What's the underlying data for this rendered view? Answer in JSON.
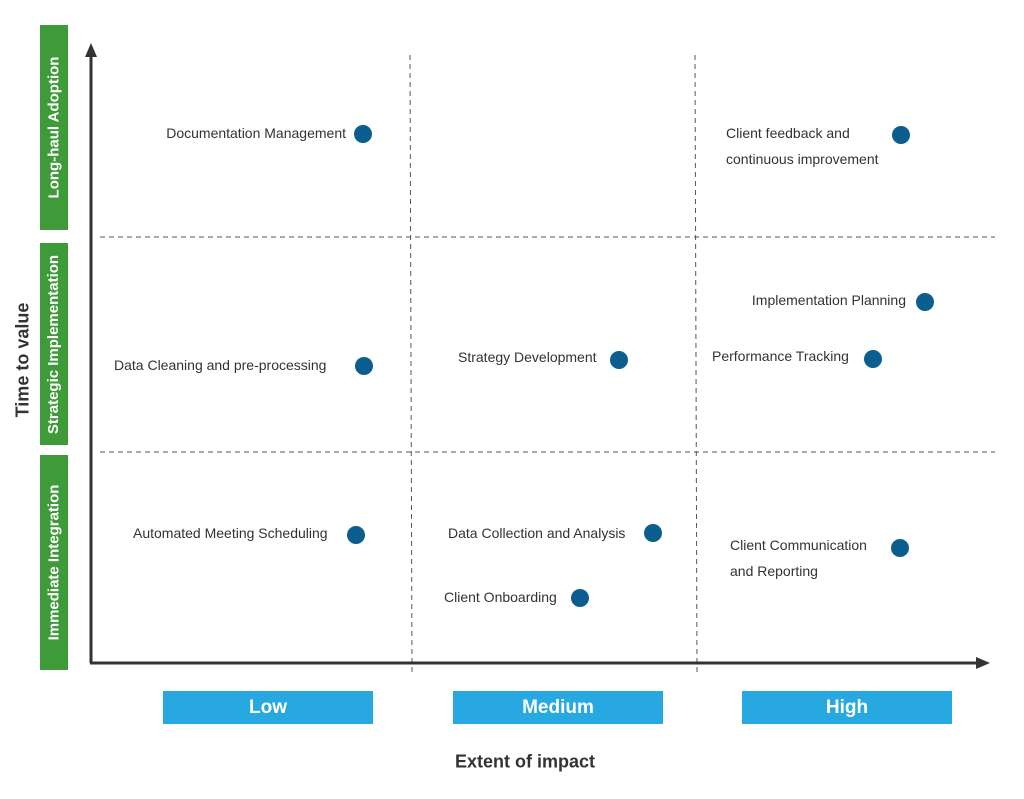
{
  "y_axis": {
    "title": "Time to value",
    "bands": [
      "Long-haul  Adoption",
      "Strategic Implementation",
      "Immediate Integration"
    ]
  },
  "x_axis": {
    "title": "Extent of impact",
    "categories": [
      "Low",
      "Medium",
      "High"
    ]
  },
  "colors": {
    "band": "#3f9a3a",
    "category": "#27a8e0",
    "point": "#0b5e8e"
  },
  "items": [
    {
      "label": "Documentation Management",
      "impact": "Low",
      "time": "Long-haul  Adoption"
    },
    {
      "label": "Client feedback and continuous improvement",
      "lines": [
        "Client feedback and",
        "continuous improvement"
      ],
      "impact": "High",
      "time": "Long-haul  Adoption"
    },
    {
      "label": "Implementation Planning",
      "impact": "High",
      "time": "Strategic Implementation"
    },
    {
      "label": "Performance Tracking",
      "impact": "High",
      "time": "Strategic Implementation"
    },
    {
      "label": "Data Cleaning and pre-processing",
      "impact": "Low",
      "time": "Strategic Implementation"
    },
    {
      "label": "Strategy Development",
      "impact": "Medium",
      "time": "Strategic Implementation"
    },
    {
      "label": "Automated Meeting Scheduling",
      "impact": "Low",
      "time": "Immediate Integration"
    },
    {
      "label": "Data Collection and Analysis",
      "impact": "Medium",
      "time": "Immediate Integration"
    },
    {
      "label": "Client Onboarding",
      "impact": "Medium",
      "time": "Immediate Integration"
    },
    {
      "label": "Client Communication and Reporting",
      "lines": [
        "Client Communication",
        "and Reporting"
      ],
      "impact": "High",
      "time": "Immediate Integration"
    }
  ]
}
